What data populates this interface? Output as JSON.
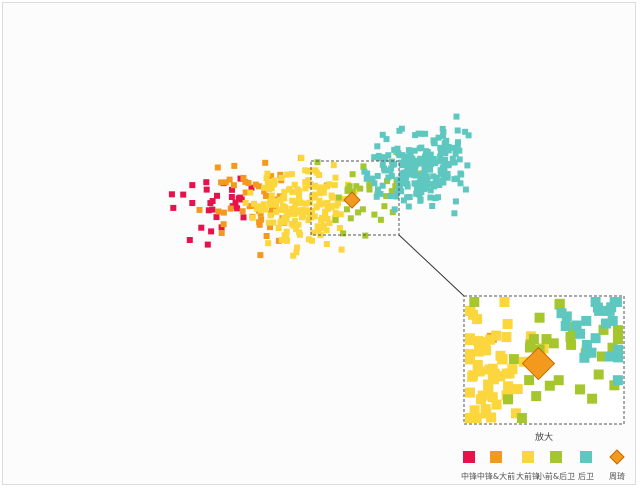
{
  "chart_data": {
    "type": "scatter",
    "title": "",
    "xlabel": "",
    "ylabel": "",
    "grid": false,
    "legend_position": "bottom-right",
    "zoom_label": "放大",
    "highlight": {
      "name": "周琦",
      "x": 352,
      "y": 200
    },
    "zoom_window": {
      "x": [
        312,
        398
      ],
      "y": [
        162,
        234
      ]
    },
    "series": [
      {
        "name": "中锋",
        "color": "#e5124c",
        "count": 30
      },
      {
        "name": "中锋&大前",
        "color": "#f39a1e",
        "count": 50
      },
      {
        "name": "大前锋",
        "color": "#fbd63c",
        "count": 190
      },
      {
        "name": "小前&后卫",
        "color": "#a6c62e",
        "count": 35
      },
      {
        "name": "后卫",
        "color": "#5ec8c0",
        "count": 230
      }
    ],
    "legend": [
      {
        "name": "中锋",
        "color": "#e5124c",
        "shape": "square"
      },
      {
        "name": "中锋&大前",
        "color": "#f39a1e",
        "shape": "square"
      },
      {
        "name": "大前锋",
        "color": "#fbd63c",
        "shape": "square"
      },
      {
        "name": "小前&后卫",
        "color": "#a6c62e",
        "shape": "square"
      },
      {
        "name": "后卫",
        "color": "#5ec8c0",
        "shape": "square"
      },
      {
        "name": "周琦",
        "color": "#f39a1e",
        "shape": "diamond"
      }
    ]
  }
}
